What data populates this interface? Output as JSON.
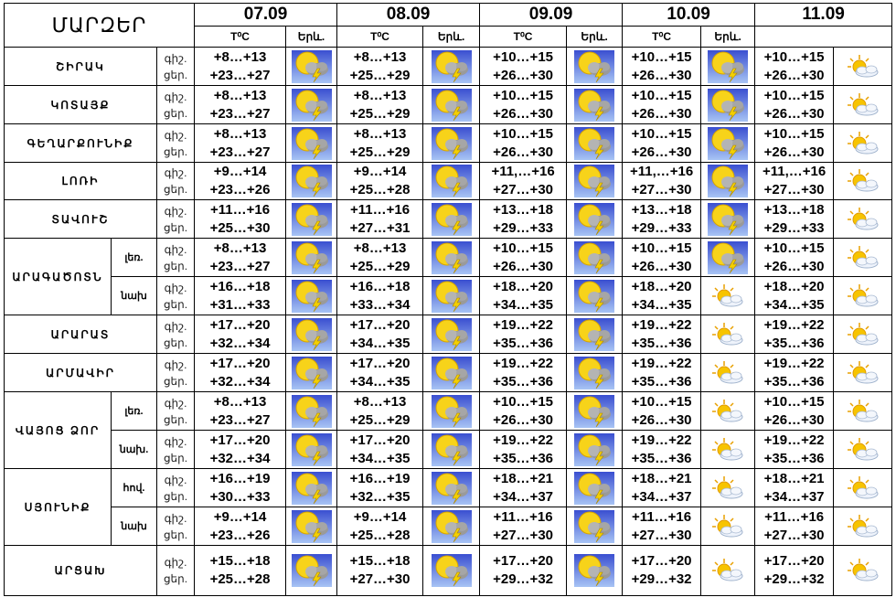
{
  "header": {
    "corner": "ՄԱՐԶԵՐ",
    "dates": [
      "07.09",
      "08.09",
      "09.09",
      "10.09",
      "11.09"
    ],
    "temp_label": "T⁰C",
    "icon_label": "Երև."
  },
  "rows": [
    {
      "region": "ՇԻՐԱԿ",
      "sub": "",
      "times": [
        "գիշ.",
        "ցեր."
      ],
      "days": [
        {
          "t": [
            "+8…+13",
            "+23…+27"
          ],
          "icon": "storm"
        },
        {
          "t": [
            "+8…+13",
            "+25…+29"
          ],
          "icon": "storm"
        },
        {
          "t": [
            "+10…+15",
            "+26…+30"
          ],
          "icon": "storm"
        },
        {
          "t": [
            "+10…+15",
            "+26…+30"
          ],
          "icon": "storm"
        },
        {
          "t": [
            "+10…+15",
            "+26…+30"
          ],
          "icon": "partly-cloudy"
        }
      ]
    },
    {
      "region": "ԿՈՏԱՅՔ",
      "sub": "",
      "times": [
        "գիշ.",
        "ցեր."
      ],
      "days": [
        {
          "t": [
            "+8…+13",
            "+23…+27"
          ],
          "icon": "storm"
        },
        {
          "t": [
            "+8…+13",
            "+25…+29"
          ],
          "icon": "storm"
        },
        {
          "t": [
            "+10…+15",
            "+26…+30"
          ],
          "icon": "storm"
        },
        {
          "t": [
            "+10…+15",
            "+26…+30"
          ],
          "icon": "storm"
        },
        {
          "t": [
            "+10…+15",
            "+26…+30"
          ],
          "icon": "partly-cloudy"
        }
      ]
    },
    {
      "region": "ԳԵՂԱՐՔՈՒՆԻՔ",
      "sub": "",
      "times": [
        "գիշ.",
        "ցեր."
      ],
      "days": [
        {
          "t": [
            "+8…+13",
            "+23…+27"
          ],
          "icon": "storm"
        },
        {
          "t": [
            "+8…+13",
            "+25…+29"
          ],
          "icon": "storm"
        },
        {
          "t": [
            "+10…+15",
            "+26…+30"
          ],
          "icon": "storm"
        },
        {
          "t": [
            "+10…+15",
            "+26…+30"
          ],
          "icon": "storm"
        },
        {
          "t": [
            "+10…+15",
            "+26…+30"
          ],
          "icon": "partly-cloudy"
        }
      ]
    },
    {
      "region": "ԼՈՌԻ",
      "sub": "",
      "times": [
        "գիշ.",
        "ցեր."
      ],
      "days": [
        {
          "t": [
            "+9…+14",
            "+23…+26"
          ],
          "icon": "storm"
        },
        {
          "t": [
            "+9…+14",
            "+25…+28"
          ],
          "icon": "storm"
        },
        {
          "t": [
            "+11,…+16",
            "+27…+30"
          ],
          "icon": "storm"
        },
        {
          "t": [
            "+11,…+16",
            "+27…+30"
          ],
          "icon": "storm"
        },
        {
          "t": [
            "+11,…+16",
            "+27…+30"
          ],
          "icon": "partly-cloudy"
        }
      ]
    },
    {
      "region": "ՏԱՎՈՒՇ",
      "sub": "",
      "times": [
        "գիշ.",
        "ցեր."
      ],
      "days": [
        {
          "t": [
            "+11…+16",
            "+25…+30"
          ],
          "icon": "storm"
        },
        {
          "t": [
            "+11…+16",
            "+27…+31"
          ],
          "icon": "storm"
        },
        {
          "t": [
            "+13…+18",
            "+29…+33"
          ],
          "icon": "storm"
        },
        {
          "t": [
            "+13…+18",
            "+29…+33"
          ],
          "icon": "storm"
        },
        {
          "t": [
            "+13…+18",
            "+29…+33"
          ],
          "icon": "partly-cloudy"
        }
      ]
    },
    {
      "region": "ԱՐԱԳԱԾՈՏՆ",
      "sub": "լեռ.",
      "times": [
        "գիշ.",
        "ցեր."
      ],
      "days": [
        {
          "t": [
            "+8…+13",
            "+23…+27"
          ],
          "icon": "storm"
        },
        {
          "t": [
            "+8…+13",
            "+25…+29"
          ],
          "icon": "storm"
        },
        {
          "t": [
            "+10…+15",
            "+26…+30"
          ],
          "icon": "storm"
        },
        {
          "t": [
            "+10…+15",
            "+26…+30"
          ],
          "icon": "storm"
        },
        {
          "t": [
            "+10…+15",
            "+26…+30"
          ],
          "icon": "partly-cloudy"
        }
      ]
    },
    {
      "region": "",
      "sub": "նախ",
      "times": [
        "գիշ.",
        "ցեր."
      ],
      "days": [
        {
          "t": [
            "+16…+18",
            "+31…+33"
          ],
          "icon": "storm"
        },
        {
          "t": [
            "+16…+18",
            "+33…+34"
          ],
          "icon": "storm"
        },
        {
          "t": [
            "+18…+20",
            "+34…+35"
          ],
          "icon": "storm"
        },
        {
          "t": [
            "+18…+20",
            "+34…+35"
          ],
          "icon": "partly-cloudy"
        },
        {
          "t": [
            "+18…+20",
            "+34…+35"
          ],
          "icon": "partly-cloudy"
        }
      ]
    },
    {
      "region": "ԱՐԱՐԱՏ",
      "sub": "",
      "times": [
        "գիշ.",
        "ցեր."
      ],
      "days": [
        {
          "t": [
            "+17…+20",
            "+32…+34"
          ],
          "icon": "storm"
        },
        {
          "t": [
            "+17…+20",
            "+34…+35"
          ],
          "icon": "storm"
        },
        {
          "t": [
            "+19…+22",
            "+35…+36"
          ],
          "icon": "storm"
        },
        {
          "t": [
            "+19…+22",
            "+35…+36"
          ],
          "icon": "partly-cloudy"
        },
        {
          "t": [
            "+19…+22",
            "+35…+36"
          ],
          "icon": "partly-cloudy"
        }
      ]
    },
    {
      "region": "ԱՐՄԱՎԻՐ",
      "sub": "",
      "times": [
        "գիշ.",
        "ցեր."
      ],
      "days": [
        {
          "t": [
            "+17…+20",
            "+32…+34"
          ],
          "icon": "storm"
        },
        {
          "t": [
            "+17…+20",
            "+34…+35"
          ],
          "icon": "storm"
        },
        {
          "t": [
            "+19…+22",
            "+35…+36"
          ],
          "icon": "storm"
        },
        {
          "t": [
            "+19…+22",
            "+35…+36"
          ],
          "icon": "partly-cloudy"
        },
        {
          "t": [
            "+19…+22",
            "+35…+36"
          ],
          "icon": "partly-cloudy"
        }
      ]
    },
    {
      "region": "ՎԱՅՈՑ ՁՈՐ",
      "sub": "լեռ.",
      "times": [
        "գիշ.",
        "ցեր."
      ],
      "days": [
        {
          "t": [
            "+8…+13",
            "+23…+27"
          ],
          "icon": "storm"
        },
        {
          "t": [
            "+8…+13",
            "+25…+29"
          ],
          "icon": "storm"
        },
        {
          "t": [
            "+10…+15",
            "+26…+30"
          ],
          "icon": "storm"
        },
        {
          "t": [
            "+10…+15",
            "+26…+30"
          ],
          "icon": "partly-cloudy"
        },
        {
          "t": [
            "+10…+15",
            "+26…+30"
          ],
          "icon": "partly-cloudy"
        }
      ]
    },
    {
      "region": "",
      "sub": "նախ.",
      "times": [
        "գիշ.",
        "ցեր."
      ],
      "days": [
        {
          "t": [
            "+17…+20",
            "+32…+34"
          ],
          "icon": "storm"
        },
        {
          "t": [
            "+17…+20",
            "+34…+35"
          ],
          "icon": "storm"
        },
        {
          "t": [
            "+19…+22",
            "+35…+36"
          ],
          "icon": "storm"
        },
        {
          "t": [
            "+19…+22",
            "+35…+36"
          ],
          "icon": "partly-cloudy"
        },
        {
          "t": [
            "+19…+22",
            "+35…+36"
          ],
          "icon": "partly-cloudy"
        }
      ]
    },
    {
      "region": "ՍՅՈՒՆԻՔ",
      "sub": "հով.",
      "times": [
        "գիշ.",
        "ցեր."
      ],
      "days": [
        {
          "t": [
            "+16…+19",
            "+30…+33"
          ],
          "icon": "storm"
        },
        {
          "t": [
            "+16…+19",
            "+32…+35"
          ],
          "icon": "storm"
        },
        {
          "t": [
            "+18…+21",
            "+34…+37"
          ],
          "icon": "storm"
        },
        {
          "t": [
            "+18…+21",
            "+34…+37"
          ],
          "icon": "partly-cloudy"
        },
        {
          "t": [
            "+18…+21",
            "+34…+37"
          ],
          "icon": "partly-cloudy"
        }
      ]
    },
    {
      "region": "",
      "sub": "նախ",
      "times": [
        "գիշ.",
        "ցեր."
      ],
      "days": [
        {
          "t": [
            "+9…+14",
            "+23…+26"
          ],
          "icon": "storm"
        },
        {
          "t": [
            "+9…+14",
            "+25…+28"
          ],
          "icon": "storm"
        },
        {
          "t": [
            "+11…+16",
            "+27…+30"
          ],
          "icon": "storm"
        },
        {
          "t": [
            "+11…+16",
            "+27…+30"
          ],
          "icon": "partly-cloudy"
        },
        {
          "t": [
            "+11…+16",
            "+27…+30"
          ],
          "icon": "partly-cloudy"
        }
      ]
    },
    {
      "region": "ԱՐՑԱԽ",
      "sub": "",
      "times": [
        "գիշ.",
        "ցեր."
      ],
      "days": [
        {
          "t": [
            "+15…+18",
            "+25…+28"
          ],
          "icon": "storm"
        },
        {
          "t": [
            "+15…+18",
            "+27…+30"
          ],
          "icon": "storm"
        },
        {
          "t": [
            "+17…+20",
            "+29…+32"
          ],
          "icon": "storm"
        },
        {
          "t": [
            "+17…+20",
            "+29…+32"
          ],
          "icon": "partly-cloudy"
        },
        {
          "t": [
            "+17…+20",
            "+29…+32"
          ],
          "icon": "partly-cloudy"
        }
      ]
    }
  ],
  "colors": {
    "storm_bg_top": "#3a4fd0",
    "storm_bg_bottom": "#a8c4f4",
    "sun": "#f7d31a",
    "cloud": "#9a9a9a",
    "lightning": "#f4d000"
  }
}
